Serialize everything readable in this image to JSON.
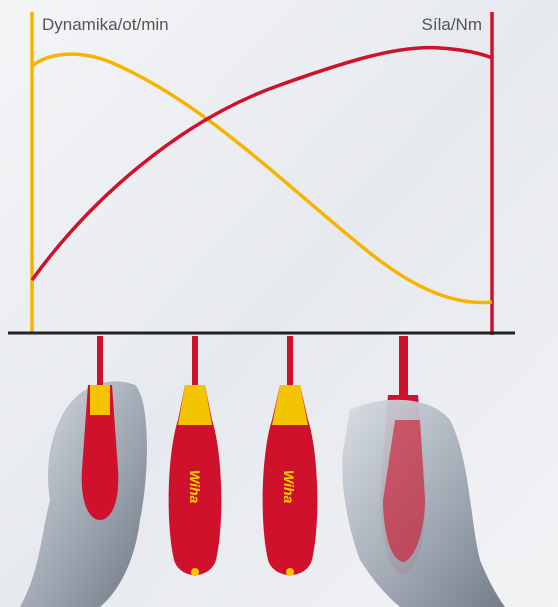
{
  "chart": {
    "left_axis_label": "Dynamika/ot/min",
    "right_axis_label": "Síla/Nm"
  },
  "brand": "Wiha"
}
